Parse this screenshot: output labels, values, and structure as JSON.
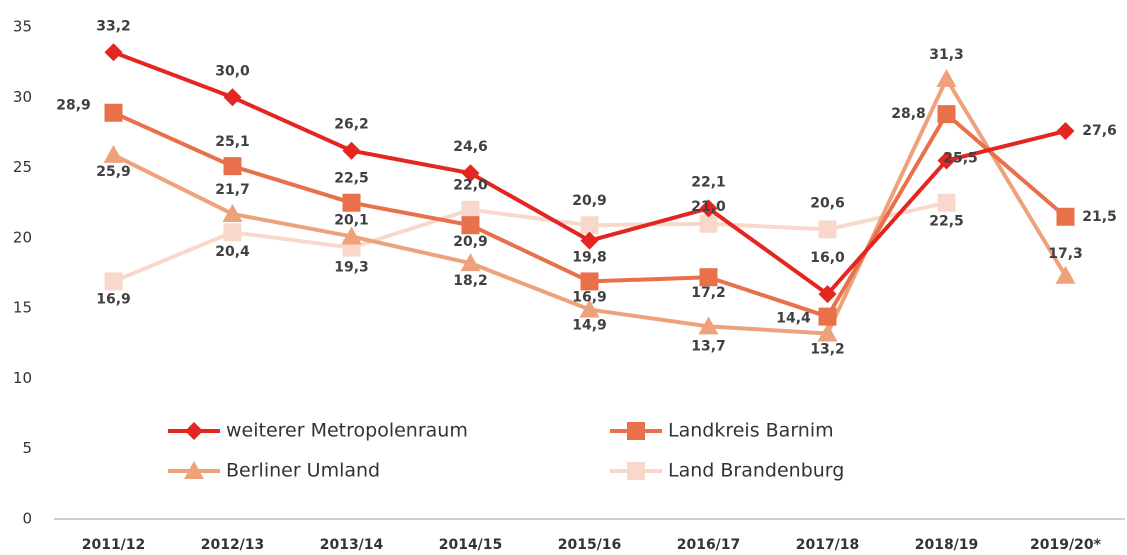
{
  "chart_data": {
    "type": "line",
    "categories": [
      "2011/12",
      "2012/13",
      "2013/14",
      "2014/15",
      "2015/16",
      "2016/17",
      "2017/18",
      "2018/19",
      "2019/20*"
    ],
    "series": [
      {
        "name": "weiterer Metropolenraum",
        "color": "#e3261f",
        "marker": "diamond",
        "values": [
          33.2,
          30.0,
          26.2,
          24.6,
          19.8,
          22.1,
          16.0,
          25.5,
          27.6
        ],
        "value_labels": [
          "33,2",
          "30,0",
          "26,2",
          "24,6",
          "19,8",
          "22,1",
          "16,0",
          "25,5",
          "27,6"
        ]
      },
      {
        "name": "Landkreis Barnim",
        "color": "#e8704a",
        "marker": "square",
        "values": [
          28.9,
          25.1,
          22.5,
          20.9,
          16.9,
          17.2,
          14.4,
          28.8,
          21.5
        ],
        "value_labels": [
          "28,9",
          "25,1",
          "22,5",
          "20,9",
          "16,9",
          "17,2",
          "14,4",
          "28,8",
          "21,5"
        ]
      },
      {
        "name": "Berliner Umland",
        "color": "#eea27c",
        "marker": "triangle",
        "values": [
          25.9,
          21.7,
          20.1,
          18.2,
          14.9,
          13.7,
          13.2,
          31.3,
          17.3
        ],
        "value_labels": [
          "25,9",
          "21,7",
          "20,1",
          "18,2",
          "14,9",
          "13,7",
          "13,2",
          "31,3",
          "17,3"
        ]
      },
      {
        "name": "Land Brandenburg",
        "color": "#f9d8cc",
        "marker": "square",
        "values": [
          16.9,
          20.4,
          19.3,
          22.0,
          20.9,
          21.0,
          20.6,
          22.5,
          null
        ],
        "value_labels": [
          "16,9",
          "20,4",
          "19,3",
          "22,0",
          "20,9",
          "21,0",
          "20,6",
          "22,5",
          null
        ]
      }
    ],
    "ylim": [
      0,
      35
    ],
    "yticks": [
      0,
      5,
      10,
      15,
      20,
      25,
      30,
      35
    ],
    "grid": false
  }
}
